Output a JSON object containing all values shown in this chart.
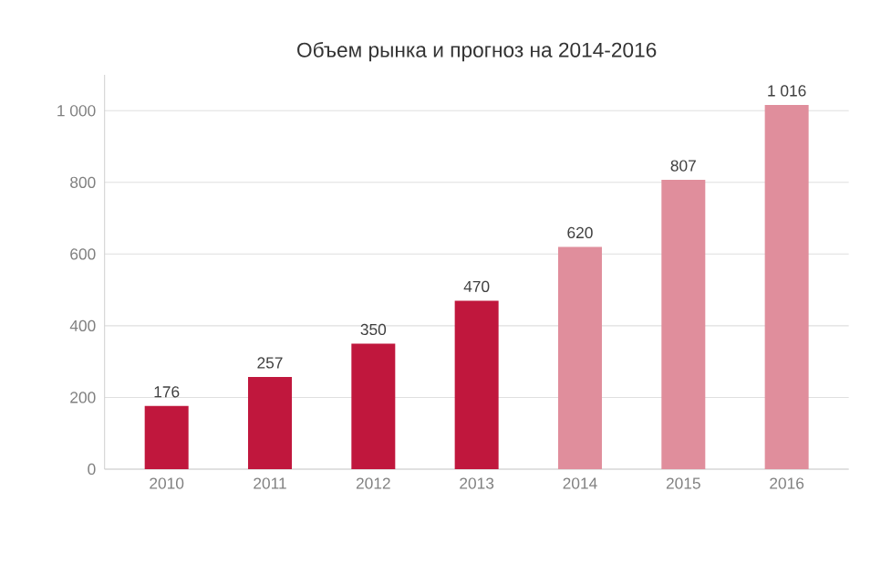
{
  "chart_data": {
    "type": "bar",
    "title": "Объем рынка и прогноз на 2014-2016",
    "categories": [
      "2010",
      "2011",
      "2012",
      "2013",
      "2014",
      "2015",
      "2016"
    ],
    "values": [
      176,
      257,
      350,
      470,
      620,
      807,
      1016
    ],
    "colors": [
      "#c0173d",
      "#c0173d",
      "#c0173d",
      "#c0173d",
      "#e08e9c",
      "#e08e9c",
      "#e08e9c"
    ],
    "value_labels": [
      "176",
      "257",
      "350",
      "470",
      "620",
      "807",
      "1 016"
    ],
    "ylim": [
      0,
      1100
    ],
    "yticks": [
      0,
      200,
      400,
      600,
      800,
      {
        "value": 1000,
        "label": "1 000"
      }
    ],
    "grid": "y"
  }
}
